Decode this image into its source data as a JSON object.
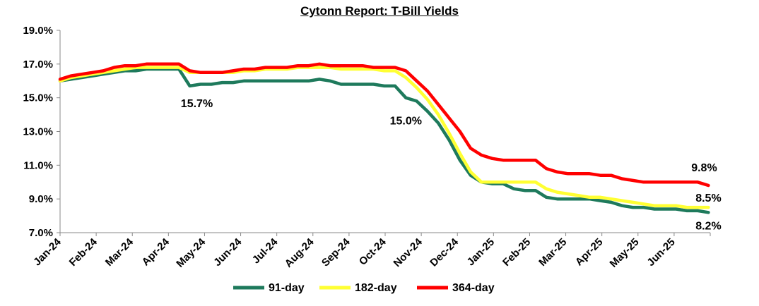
{
  "chart_data": {
    "type": "line",
    "title": "Cytonn Report: T-Bill Yields",
    "xlabel": "",
    "ylabel": "",
    "ylim": [
      7.0,
      19.0
    ],
    "yticks": [
      "7.0%",
      "9.0%",
      "11.0%",
      "13.0%",
      "15.0%",
      "17.0%",
      "19.0%"
    ],
    "xticks": [
      "Jan-24",
      "Feb-24",
      "Mar-24",
      "Apr-24",
      "May-24",
      "Jun-24",
      "Jul-24",
      "Aug-24",
      "Sep-24",
      "Oct-24",
      "Nov-24",
      "Dec-24",
      "Jan-25",
      "Feb-25",
      "Mar-25",
      "Apr-25",
      "May-25",
      "Jun-25"
    ],
    "grid": false,
    "legend_position": "bottom",
    "series": [
      {
        "name": "91-day",
        "color": "#1e7a5c",
        "values": [
          16.0,
          16.1,
          16.2,
          16.3,
          16.4,
          16.5,
          16.6,
          16.6,
          16.7,
          16.7,
          16.7,
          16.7,
          15.7,
          15.8,
          15.8,
          15.9,
          15.9,
          16.0,
          16.0,
          16.0,
          16.0,
          16.0,
          16.0,
          16.0,
          16.1,
          16.0,
          15.8,
          15.8,
          15.8,
          15.8,
          15.7,
          15.7,
          15.0,
          14.8,
          14.2,
          13.5,
          12.5,
          11.3,
          10.4,
          10.0,
          9.9,
          9.9,
          9.6,
          9.5,
          9.5,
          9.1,
          9.0,
          9.0,
          9.0,
          9.0,
          8.9,
          8.8,
          8.6,
          8.5,
          8.5,
          8.4,
          8.4,
          8.4,
          8.3,
          8.3,
          8.2
        ]
      },
      {
        "name": "182-day",
        "color": "#ffff33",
        "values": [
          16.0,
          16.2,
          16.3,
          16.4,
          16.5,
          16.6,
          16.7,
          16.8,
          16.8,
          16.8,
          16.8,
          16.8,
          16.5,
          16.5,
          16.5,
          16.5,
          16.5,
          16.6,
          16.6,
          16.7,
          16.7,
          16.7,
          16.8,
          16.8,
          16.8,
          16.8,
          16.7,
          16.7,
          16.7,
          16.7,
          16.6,
          16.6,
          16.2,
          15.6,
          14.9,
          14.0,
          12.9,
          11.7,
          10.6,
          10.0,
          10.0,
          10.0,
          10.0,
          10.0,
          10.0,
          9.6,
          9.4,
          9.3,
          9.2,
          9.1,
          9.1,
          9.0,
          8.9,
          8.8,
          8.7,
          8.6,
          8.6,
          8.6,
          8.5,
          8.5,
          8.5
        ]
      },
      {
        "name": "364-day",
        "color": "#ff0000",
        "values": [
          16.1,
          16.3,
          16.4,
          16.5,
          16.6,
          16.8,
          16.9,
          16.9,
          17.0,
          17.0,
          17.0,
          17.0,
          16.6,
          16.5,
          16.5,
          16.5,
          16.6,
          16.7,
          16.7,
          16.8,
          16.8,
          16.8,
          16.9,
          16.9,
          17.0,
          16.9,
          16.9,
          16.9,
          16.9,
          16.8,
          16.8,
          16.8,
          16.6,
          16.0,
          15.4,
          14.6,
          13.8,
          13.0,
          12.0,
          11.6,
          11.4,
          11.3,
          11.3,
          11.3,
          11.3,
          10.8,
          10.6,
          10.5,
          10.5,
          10.5,
          10.4,
          10.4,
          10.2,
          10.1,
          10.0,
          10.0,
          10.0,
          10.0,
          10.0,
          10.0,
          9.8
        ]
      }
    ],
    "annotations": [
      "15.7%",
      "15.0%",
      "9.8%",
      "8.5%",
      "8.2%"
    ]
  }
}
